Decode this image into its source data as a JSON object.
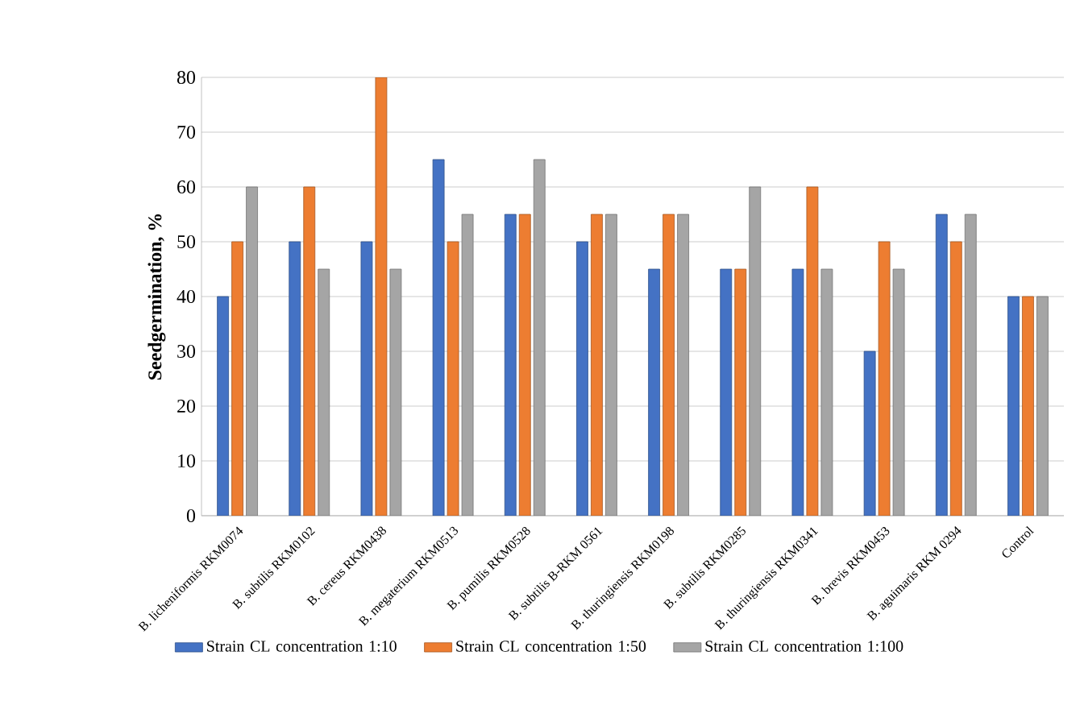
{
  "chart_data": {
    "type": "bar",
    "ylabel": "**Seedgermination, %**",
    "categories": [
      "B. licheniformis RKM0074",
      "B. subtilis RKM0102",
      "B. cereus RKM0438",
      "B. megaterium RKM0513",
      "B. pumilis RKM0528",
      "B. subtilis B-RKM 0561",
      "B. thuringiensis RKM0198",
      "B. subtilis RKM0285",
      "B. thuringiensis RKM0341",
      "B. brevis RKM0453",
      "B. aguimaris RKM 0294",
      "Control"
    ],
    "series": [
      {
        "name": "Strain CL concentration 1:10",
        "color": "#4472c4",
        "values": [
          40,
          50,
          50,
          65,
          55,
          50,
          45,
          45,
          45,
          30,
          55,
          40
        ]
      },
      {
        "name": "Strain CL concentration 1:50",
        "color": "#ed7d31",
        "values": [
          50,
          60,
          80,
          50,
          55,
          55,
          55,
          45,
          60,
          50,
          50,
          40
        ]
      },
      {
        "name": "Strain CL concentration 1:100",
        "color": "#a5a5a5",
        "values": [
          60,
          45,
          45,
          55,
          65,
          55,
          55,
          60,
          45,
          45,
          55,
          40
        ]
      }
    ],
    "ylim": [
      0,
      80
    ],
    "yticks": [
      0,
      10,
      20,
      30,
      40,
      50,
      60,
      70,
      80
    ],
    "grid": "y",
    "legend": "bottom"
  }
}
